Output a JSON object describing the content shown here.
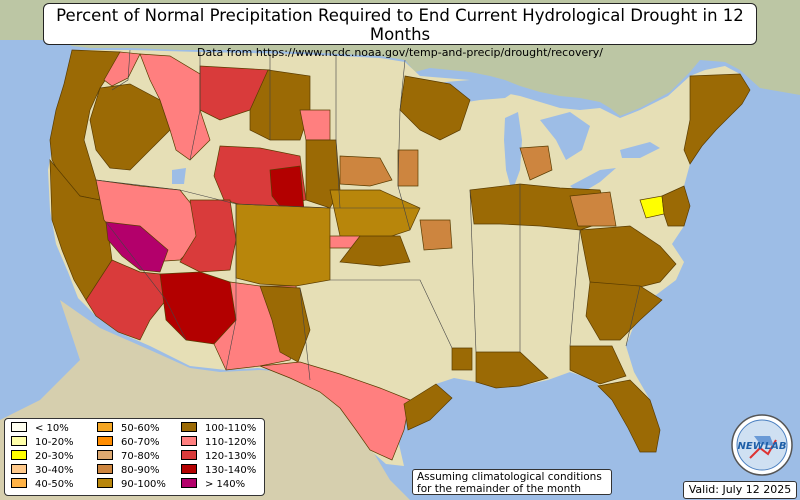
{
  "title": "Percent of Normal Precipitation Required to End Current Hydrological Drought in 12 Months",
  "subtitle": "Data from https://www.ncdc.noaa.gov/temp-and-precip/drought/recovery/",
  "legend": [
    {
      "label": "< 10%",
      "color": "#fffff0"
    },
    {
      "label": "10-20%",
      "color": "#ffffa8"
    },
    {
      "label": "20-30%",
      "color": "#ffff00"
    },
    {
      "label": "30-40%",
      "color": "#ffc98a"
    },
    {
      "label": "40-50%",
      "color": "#ffb347"
    },
    {
      "label": "50-60%",
      "color": "#f5a623"
    },
    {
      "label": "60-70%",
      "color": "#ff8c00"
    },
    {
      "label": "70-80%",
      "color": "#dca870"
    },
    {
      "label": "80-90%",
      "color": "#cd853f"
    },
    {
      "label": "90-100%",
      "color": "#b8860b"
    },
    {
      "label": "100-110%",
      "color": "#9b6a05"
    },
    {
      "label": "110-120%",
      "color": "#ff7f7f"
    },
    {
      "label": "120-130%",
      "color": "#d93b3b"
    },
    {
      "label": "130-140%",
      "color": "#b30000"
    },
    {
      "label": "> 140%",
      "color": "#b3006b"
    }
  ],
  "note": {
    "line1": "Assuming climatological conditions",
    "line2": "for the remainder of the month"
  },
  "valid": "Valid: July 12 2025",
  "logo": {
    "text": "NEW LAB",
    "text_part1": "NEW",
    "text_part2": "LAB"
  },
  "colors": {
    "water": "#9dbde6",
    "land": "#e6dfb6",
    "canada": "#bcc6a4",
    "mexico": "#d6cfae"
  }
}
